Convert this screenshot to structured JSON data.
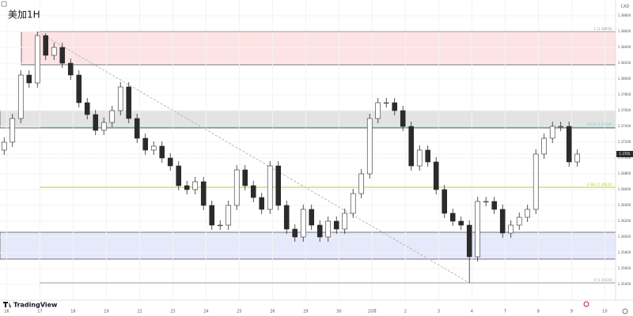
{
  "chart_data": {
    "type": "candlestick",
    "title": "美加1H",
    "currency": "CAD",
    "brand": "TradingView",
    "up_color": "#ffffff",
    "down_color": "#2b2b2b",
    "grid": true,
    "xlim": [
      -0.5,
      73.6
    ],
    "ylim": [
      1.352,
      1.39
    ],
    "xticks": [
      {
        "value": 0.3,
        "label": "16"
      },
      {
        "value": 4.3,
        "label": "17"
      },
      {
        "value": 8.3,
        "label": "18"
      },
      {
        "value": 12.3,
        "label": "19"
      },
      {
        "value": 16.3,
        "label": "22"
      },
      {
        "value": 20.3,
        "label": "23"
      },
      {
        "value": 24.3,
        "label": "24"
      },
      {
        "value": 28.3,
        "label": "25"
      },
      {
        "value": 32.3,
        "label": "26"
      },
      {
        "value": 36.3,
        "label": "29"
      },
      {
        "value": 40.3,
        "label": "30"
      },
      {
        "value": 44.3,
        "label": "10月"
      },
      {
        "value": 48.3,
        "label": "2"
      },
      {
        "value": 52.3,
        "label": "3"
      },
      {
        "value": 56.3,
        "label": "4"
      },
      {
        "value": 60.3,
        "label": "7"
      },
      {
        "value": 64.3,
        "label": "8"
      },
      {
        "value": 68.3,
        "label": "9"
      },
      {
        "value": 72.3,
        "label": "10"
      }
    ],
    "yticks": [
      {
        "value": 1.354,
        "label": "1.35400"
      },
      {
        "value": 1.356,
        "label": "1.35600"
      },
      {
        "value": 1.358,
        "label": "1.35800"
      },
      {
        "value": 1.36,
        "label": "1.36000"
      },
      {
        "value": 1.362,
        "label": "1.36200"
      },
      {
        "value": 1.364,
        "label": "1.36400"
      },
      {
        "value": 1.366,
        "label": "1.36600"
      },
      {
        "value": 1.368,
        "label": "1.36800"
      },
      {
        "value": 1.37,
        "label": "1.37000"
      },
      {
        "value": 1.372,
        "label": "1.37200"
      },
      {
        "value": 1.374,
        "label": "1.37400"
      },
      {
        "value": 1.376,
        "label": "1.37600"
      },
      {
        "value": 1.378,
        "label": "1.37800"
      },
      {
        "value": 1.38,
        "label": "1.38000"
      },
      {
        "value": 1.382,
        "label": "1.38200"
      },
      {
        "value": 1.384,
        "label": "1.38400"
      },
      {
        "value": 1.386,
        "label": "1.38600"
      },
      {
        "value": 1.388,
        "label": "1.38800"
      }
    ],
    "open": [
      1.371,
      1.372,
      1.375,
      1.3805,
      1.3795,
      1.3855,
      1.383,
      1.384,
      1.382,
      1.3805,
      1.377,
      1.3755,
      1.3735,
      1.3745,
      1.376,
      1.379,
      1.375,
      1.3725,
      1.371,
      1.3715,
      1.37,
      1.369,
      1.3665,
      1.366,
      1.367,
      1.364,
      1.3615,
      1.3615,
      1.364,
      1.3685,
      1.3665,
      1.365,
      1.3635,
      1.369,
      1.364,
      1.361,
      1.36,
      1.3635,
      1.3615,
      1.36,
      1.362,
      1.361,
      1.363,
      1.3655,
      1.368,
      1.375,
      1.377,
      1.377,
      1.376,
      1.374,
      1.369,
      1.371,
      1.3695,
      1.366,
      1.363,
      1.362,
      1.3615,
      1.3575,
      1.3645,
      1.3645,
      1.3635,
      1.3605,
      1.3615,
      1.3625,
      1.3635,
      1.3705,
      1.3725,
      1.374,
      1.374,
      1.3695
    ],
    "high": [
      1.3726,
      1.3756,
      1.3811,
      1.3811,
      1.386,
      1.3858,
      1.3846,
      1.3846,
      1.3826,
      1.3811,
      1.3776,
      1.3761,
      1.3751,
      1.3766,
      1.3796,
      1.3796,
      1.3756,
      1.3731,
      1.3721,
      1.3721,
      1.3706,
      1.3696,
      1.3671,
      1.3676,
      1.3676,
      1.3646,
      1.3621,
      1.3646,
      1.3691,
      1.3691,
      1.3671,
      1.3656,
      1.3696,
      1.3696,
      1.3646,
      1.3616,
      1.3641,
      1.3641,
      1.3621,
      1.3626,
      1.3626,
      1.3636,
      1.3661,
      1.3686,
      1.3756,
      1.3776,
      1.3776,
      1.3776,
      1.3766,
      1.3746,
      1.3716,
      1.3716,
      1.3701,
      1.3666,
      1.3636,
      1.3626,
      1.3621,
      1.3651,
      1.3651,
      1.3651,
      1.3641,
      1.3621,
      1.3631,
      1.3641,
      1.3711,
      1.3731,
      1.3746,
      1.3746,
      1.3746,
      1.3711
    ],
    "low": [
      1.3704,
      1.3714,
      1.3744,
      1.3789,
      1.3789,
      1.3824,
      1.3824,
      1.3814,
      1.3799,
      1.3764,
      1.3749,
      1.3729,
      1.3729,
      1.3739,
      1.3754,
      1.3744,
      1.3719,
      1.3704,
      1.3704,
      1.3694,
      1.3684,
      1.3659,
      1.3654,
      1.3654,
      1.3634,
      1.3609,
      1.3609,
      1.3609,
      1.3634,
      1.3659,
      1.3644,
      1.3629,
      1.3629,
      1.3634,
      1.3604,
      1.3594,
      1.3594,
      1.3609,
      1.3594,
      1.3594,
      1.3604,
      1.3604,
      1.3624,
      1.3649,
      1.3674,
      1.3744,
      1.3764,
      1.3754,
      1.3734,
      1.3684,
      1.3684,
      1.3689,
      1.3654,
      1.3624,
      1.3614,
      1.3609,
      1.3542,
      1.3569,
      1.3639,
      1.3629,
      1.3599,
      1.3599,
      1.3609,
      1.3619,
      1.3629,
      1.3699,
      1.3719,
      1.3734,
      1.3689,
      1.3689
    ],
    "close": [
      1.372,
      1.375,
      1.3805,
      1.3795,
      1.3855,
      1.383,
      1.384,
      1.382,
      1.3805,
      1.377,
      1.3755,
      1.3735,
      1.3745,
      1.376,
      1.379,
      1.375,
      1.3725,
      1.371,
      1.3715,
      1.37,
      1.369,
      1.3665,
      1.366,
      1.367,
      1.364,
      1.3615,
      1.3615,
      1.364,
      1.3685,
      1.3665,
      1.365,
      1.3635,
      1.369,
      1.364,
      1.361,
      1.36,
      1.3635,
      1.3615,
      1.36,
      1.362,
      1.361,
      1.363,
      1.3655,
      1.368,
      1.375,
      1.377,
      1.377,
      1.376,
      1.374,
      1.369,
      1.371,
      1.3695,
      1.366,
      1.363,
      1.362,
      1.3615,
      1.3575,
      1.3645,
      1.3645,
      1.3635,
      1.3605,
      1.3615,
      1.3625,
      1.3635,
      1.3705,
      1.3725,
      1.374,
      1.374,
      1.3695,
      1.3705
    ],
    "zones": [
      {
        "from": 1.3818,
        "to": 1.386,
        "color": "#fde3e3"
      },
      {
        "from": 1.3738,
        "to": 1.376,
        "color": "#e3e3e3"
      },
      {
        "from": 1.3572,
        "to": 1.3606,
        "color": "#e6e9fb"
      }
    ],
    "fib_levels": [
      {
        "value": 1.386,
        "label": "1 (1.38600)",
        "color": "#9e9e9e"
      },
      {
        "value": 1.3739,
        "label": "0.618 (1.37390)",
        "color": "#80cbc4"
      },
      {
        "value": 1.3663,
        "label": "0.382 (1.36630)",
        "color": "#c0ca33"
      },
      {
        "value": 1.3542,
        "label": "0 (1.35420)",
        "color": "#9e9e9e"
      }
    ]
  }
}
